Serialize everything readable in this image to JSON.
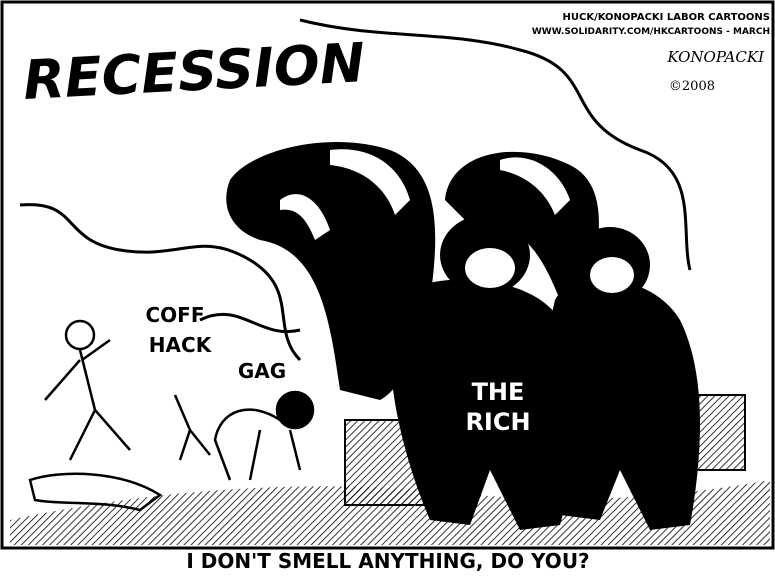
{
  "title": "RECESSION",
  "credit": {
    "line1": "HUCK/KONOPACKI LABOR CARTOONS",
    "line2": "WWW.SOLIDARITY.COM/HKCARTOONS - MARCH",
    "signature": "KONOPACKI",
    "year": "©2008"
  },
  "sounds": [
    "COFF",
    "HACK",
    "GAG"
  ],
  "label": {
    "line1": "THE",
    "line2": "RICH"
  },
  "caption": "I DON'T SMELL ANYTHING, DO YOU?"
}
